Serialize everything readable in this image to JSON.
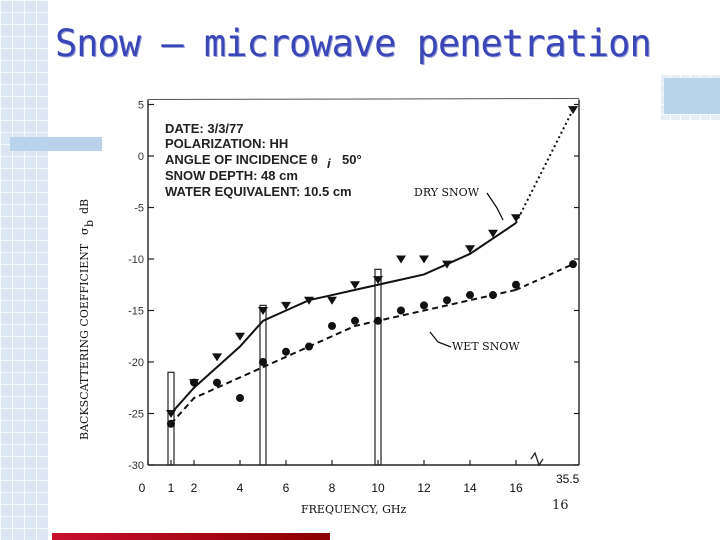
{
  "slide": {
    "title": "Snow – microwave penetration",
    "page_number": "16"
  },
  "chart_data": {
    "type": "line",
    "ylabel": "BACKSCATTERING COEFFICIENT",
    "ylabel_symbol": "σ",
    "ylabel_subscript": "b",
    "ylabel_unit": "dB",
    "xlabel": "FREQUENCY, GHz",
    "x_ticks": [
      "0",
      "1",
      "2",
      "4",
      "6",
      "8",
      "10",
      "12",
      "14",
      "16"
    ],
    "x_tick_values": [
      0,
      1,
      2,
      4,
      6,
      8,
      10,
      12,
      14,
      16
    ],
    "x_extra_tick": "35.5",
    "y_ticks": [
      "5",
      "0",
      "-5",
      "-10",
      "-15",
      "-20",
      "-25",
      "-30"
    ],
    "y_tick_values": [
      5,
      0,
      -5,
      -10,
      -15,
      -20,
      -25,
      -30
    ],
    "ylim": [
      -30,
      5
    ],
    "annotation_lines": [
      "DATE: 3/3/77",
      "POLARIZATION: HH",
      "ANGLE OF INCIDENCE θ",
      "SNOW DEPTH: 48 cm",
      "WATER EQUIVALENT: 10.5 cm"
    ],
    "angle_subscript": "i",
    "angle_value": "50°",
    "series": [
      {
        "name": "DRY SNOW",
        "style": "solid-triangles",
        "x": [
          1,
          2,
          3,
          4,
          5,
          6,
          7,
          8,
          9,
          10,
          11,
          12,
          13,
          14,
          15,
          16,
          35.5
        ],
        "y": [
          -25,
          -22,
          -19.5,
          -17.5,
          -15,
          -14.5,
          -14,
          -14,
          -12.5,
          -12,
          -10,
          -10,
          -10.5,
          -9,
          -7.5,
          -6,
          4.5
        ],
        "fit_x": [
          1,
          2,
          3,
          4,
          5,
          6,
          7,
          8,
          9,
          10,
          11,
          12,
          13,
          14,
          15,
          16
        ],
        "fit_y": [
          -25,
          -22.5,
          -20.5,
          -18.5,
          -16,
          -15,
          -14,
          -13.5,
          -13,
          -12.5,
          -12,
          -11.5,
          -10.5,
          -9.5,
          -8,
          -6.5
        ]
      },
      {
        "name": "WET SNOW",
        "style": "dashed-dots",
        "x": [
          1,
          2,
          3,
          4,
          5,
          6,
          7,
          8,
          9,
          10,
          11,
          12,
          13,
          14,
          15,
          16,
          35.5
        ],
        "y": [
          -26,
          -22,
          -22,
          -23.5,
          -20,
          -19,
          -18.5,
          -16.5,
          -16,
          -16,
          -15,
          -14.5,
          -14,
          -13.5,
          -13.5,
          -12.5,
          -10.5
        ],
        "fit_x": [
          1,
          2,
          3,
          4,
          5,
          6,
          7,
          8,
          9,
          10,
          11,
          12,
          13,
          14,
          15,
          16
        ],
        "fit_y": [
          -26,
          -23.5,
          -22.5,
          -21.5,
          -20.5,
          -19.5,
          -18.5,
          -17.5,
          -16.5,
          -16,
          -15.5,
          -15,
          -14.5,
          -14,
          -13.5,
          -13
        ]
      }
    ],
    "error_bars": [
      {
        "x": 1,
        "y_low": -30,
        "y_high": -21
      },
      {
        "x": 5,
        "y_low": -30,
        "y_high": -14.5
      },
      {
        "x": 10,
        "y_low": -30,
        "y_high": -11
      }
    ]
  }
}
